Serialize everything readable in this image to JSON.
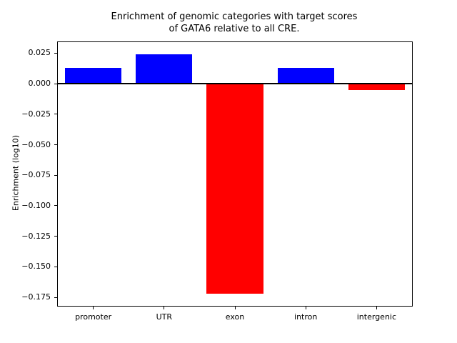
{
  "figure": {
    "background": "#ffffff",
    "frame_color": "#000000"
  },
  "chart_data": {
    "type": "bar",
    "title": "Enrichment of genomic categories with target scores\nof GATA6 relative to all CRE.",
    "xlabel": "",
    "ylabel": "Enrichment (log10)",
    "categories": [
      "promoter",
      "UTR",
      "exon",
      "intron",
      "intergenic"
    ],
    "values": [
      0.013,
      0.024,
      -0.172,
      0.013,
      -0.005
    ],
    "bar_colors": [
      "#0000ff",
      "#0000ff",
      "#ff0000",
      "#0000ff",
      "#ff0000"
    ],
    "positive_color": "#0000ff",
    "negative_color": "#ff0000",
    "ylim": [
      -0.182,
      0.034
    ],
    "yticks": [
      0.025,
      0.0,
      -0.025,
      -0.05,
      -0.075,
      -0.1,
      -0.125,
      -0.15,
      -0.175
    ],
    "baseline": 0,
    "bar_width_fraction": 0.8,
    "grid": false,
    "legend": null
  }
}
